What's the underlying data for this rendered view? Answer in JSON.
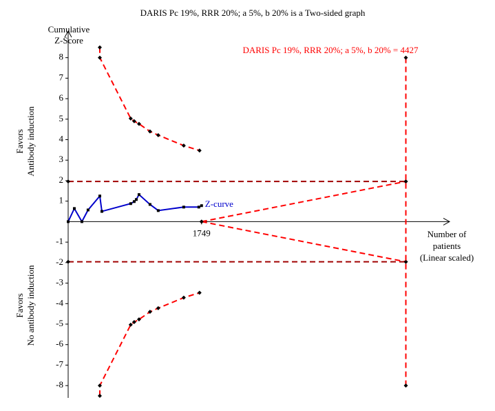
{
  "chart_data": {
    "type": "tsa",
    "title": "DARIS Pc 19%, RRR 20%; a 5%, b 20% is a Two-sided graph",
    "y_label": [
      "Cumulative",
      "Z-Score"
    ],
    "x_label": [
      "Number of",
      "patients",
      "(Linear scaled)"
    ],
    "favors_top": [
      "Favors",
      "Antibody induction"
    ],
    "favors_bottom": [
      "Favors",
      "No antibody induction"
    ],
    "ris_label": "DARIS Pc 19%, RRR 20%; a 5%, b 20% = 4427",
    "xlim": [
      0,
      5000
    ],
    "ylim": [
      -8.6,
      9.3
    ],
    "xticks": [
      1749
    ],
    "yticks": [
      -8,
      -7,
      -6,
      -5,
      -4,
      -3,
      -2,
      -1,
      1,
      2,
      3,
      4,
      5,
      6,
      7,
      8
    ],
    "series": [
      {
        "name": "Z-curve",
        "color": "#0000cc",
        "dashed": false,
        "x": [
          0,
          81,
          180,
          261,
          415,
          442,
          820,
          866,
          893,
          929,
          1073,
          1181,
          1515,
          1713,
          1749
        ],
        "values": [
          0,
          0.64,
          0,
          0.57,
          1.25,
          0.5,
          0.88,
          0.98,
          1.08,
          1.32,
          0.84,
          0.54,
          0.71,
          0.71,
          0.78
        ]
      },
      {
        "color": "#ff0000",
        "dashed": true,
        "x": [
          415,
          415,
          820,
          866,
          929,
          1073,
          1181,
          1515,
          1722
        ],
        "values": [
          8.5,
          8.0,
          5.03,
          4.9,
          4.77,
          4.4,
          4.22,
          3.71,
          3.47
        ]
      },
      {
        "color": "#ff0000",
        "dashed": true,
        "x": [
          415,
          415,
          820,
          866,
          929,
          1073,
          1181,
          1515,
          1722
        ],
        "values": [
          -8.5,
          -8.0,
          -5.03,
          -4.9,
          -4.77,
          -4.4,
          -4.22,
          -3.71,
          -3.47
        ]
      },
      {
        "color": "#a00000",
        "dashed": true,
        "x": [
          0,
          4427
        ],
        "values": [
          1.96,
          1.96
        ]
      },
      {
        "color": "#a00000",
        "dashed": true,
        "x": [
          0,
          4427
        ],
        "values": [
          -1.96,
          -1.96
        ]
      },
      {
        "color": "#ff0000",
        "dashed": true,
        "x": [
          1749,
          4427
        ],
        "values": [
          0,
          1.96
        ]
      },
      {
        "color": "#ff0000",
        "dashed": true,
        "x": [
          1749,
          4427
        ],
        "values": [
          0,
          -1.96
        ]
      },
      {
        "color": "#ff0000",
        "dashed": true,
        "x": [
          4427,
          4427
        ],
        "values": [
          8,
          -8
        ]
      }
    ]
  }
}
